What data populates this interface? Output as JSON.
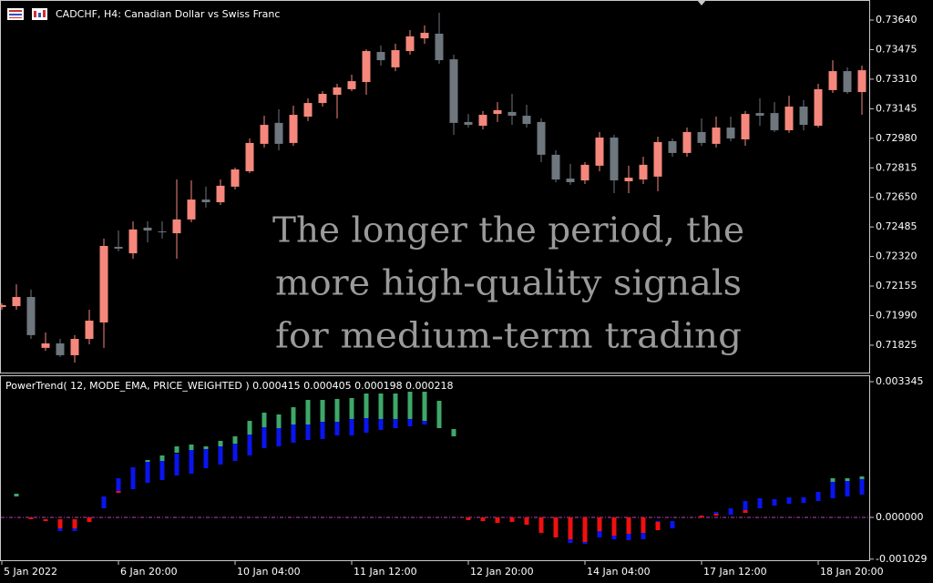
{
  "chart_data": [
    {
      "type": "candlestick",
      "title": "CADCHF, H4:  Canadian Dollar vs Swiss Franc",
      "annotations": [
        "The longer the period, the",
        "more high-quality signals",
        "for medium-term trading"
      ],
      "categories": [
        "5 Jan 2022",
        null,
        null,
        null,
        null,
        null,
        null,
        null,
        "6 Jan 20:00",
        null,
        null,
        null,
        null,
        null,
        null,
        null,
        "10 Jan 04:00",
        null,
        null,
        null,
        null,
        null,
        null,
        null,
        "11 Jan 12:00",
        null,
        null,
        null,
        null,
        null,
        null,
        null,
        "12 Jan 20:00",
        null,
        null,
        null,
        null,
        null,
        null,
        null,
        "14 Jan 04:00",
        null,
        null,
        null,
        null,
        null,
        null,
        null,
        "17 Jan 12:00",
        null,
        null,
        null,
        null,
        null,
        null,
        null,
        "18 Jan 20:00",
        null,
        null,
        null
      ],
      "open": [
        0.72038,
        0.72043,
        0.72094,
        0.7181,
        0.71835,
        0.71769,
        0.7186,
        0.71952,
        0.72374,
        0.72338,
        0.72481,
        0.7246,
        0.7245,
        0.72527,
        0.72638,
        0.72623,
        0.7271,
        0.72796,
        0.72949,
        0.73066,
        0.72954,
        0.73101,
        0.73177,
        0.73223,
        0.73254,
        0.73294,
        0.73462,
        0.73376,
        0.73467,
        0.73538,
        0.73564,
        0.73421,
        0.73071,
        0.7305,
        0.73116,
        0.73127,
        0.73106,
        0.73071,
        0.72888,
        0.72755,
        0.72745,
        0.72827,
        0.72984,
        0.7274,
        0.7275,
        0.72766,
        0.72964,
        0.72898,
        0.73015,
        0.72949,
        0.7304,
        0.72974,
        0.73121,
        0.73121,
        0.73025,
        0.73157,
        0.7305,
        0.73249,
        0.73355,
        0.73238
      ],
      "high": [
        0.72059,
        0.72165,
        0.72135,
        0.71896,
        0.7186,
        0.71881,
        0.72023,
        0.7242,
        0.72465,
        0.72516,
        0.72516,
        0.72516,
        0.7275,
        0.72745,
        0.7271,
        0.7275,
        0.72816,
        0.72979,
        0.73106,
        0.73142,
        0.73162,
        0.73203,
        0.73243,
        0.73284,
        0.73335,
        0.73477,
        0.73498,
        0.73508,
        0.73584,
        0.7361,
        0.73681,
        0.73447,
        0.73116,
        0.73132,
        0.73182,
        0.73228,
        0.73167,
        0.73091,
        0.72913,
        0.72837,
        0.72847,
        0.73015,
        0.72999,
        0.72827,
        0.72877,
        0.72989,
        0.72979,
        0.7304,
        0.73091,
        0.73101,
        0.73101,
        0.73132,
        0.73203,
        0.73182,
        0.73218,
        0.73193,
        0.73284,
        0.73416,
        0.73376,
        0.73386
      ],
      "low": [
        0.72023,
        0.72023,
        0.7186,
        0.71794,
        0.71759,
        0.71728,
        0.7183,
        0.7181,
        0.72349,
        0.72308,
        0.72399,
        0.7242,
        0.72308,
        0.72511,
        0.72593,
        0.72608,
        0.72694,
        0.72786,
        0.72928,
        0.72913,
        0.72938,
        0.73076,
        0.73157,
        0.73091,
        0.73243,
        0.73223,
        0.73386,
        0.73355,
        0.73447,
        0.73508,
        0.73396,
        0.72999,
        0.7304,
        0.7303,
        0.73071,
        0.73055,
        0.7304,
        0.72847,
        0.72735,
        0.7272,
        0.72725,
        0.72796,
        0.72674,
        0.72674,
        0.72725,
        0.72684,
        0.72877,
        0.72877,
        0.72938,
        0.72928,
        0.72964,
        0.72938,
        0.7305,
        0.73015,
        0.7301,
        0.73025,
        0.7304,
        0.73233,
        0.73228,
        0.73111
      ],
      "close": [
        0.72049,
        0.72094,
        0.71881,
        0.71835,
        0.71769,
        0.7186,
        0.71962,
        0.72379,
        0.72364,
        0.72471,
        0.72465,
        0.72455,
        0.72527,
        0.72638,
        0.72623,
        0.72715,
        0.72806,
        0.72954,
        0.73055,
        0.72949,
        0.73111,
        0.73177,
        0.73228,
        0.73264,
        0.73299,
        0.73467,
        0.73416,
        0.73472,
        0.73549,
        0.73569,
        0.73416,
        0.73066,
        0.73055,
        0.73111,
        0.73137,
        0.73106,
        0.7306,
        0.72888,
        0.7275,
        0.72735,
        0.72832,
        0.72984,
        0.72745,
        0.7276,
        0.72832,
        0.72959,
        0.72898,
        0.73015,
        0.72954,
        0.7304,
        0.72979,
        0.73116,
        0.73106,
        0.73025,
        0.73157,
        0.73055,
        0.73254,
        0.73355,
        0.73238,
        0.7336
      ],
      "up_color": "#f5877c",
      "down_color": "#6e767e",
      "ylim": [
        0.71667,
        0.73752
      ],
      "yticks": [
        {
          "value": 0.7364,
          "label": "0.73640"
        },
        {
          "value": 0.73475,
          "label": "0.73475"
        },
        {
          "value": 0.7331,
          "label": "0.73310"
        },
        {
          "value": 0.73145,
          "label": "0.73145"
        },
        {
          "value": 0.7298,
          "label": "0.72980"
        },
        {
          "value": 0.72815,
          "label": "0.72815"
        },
        {
          "value": 0.7265,
          "label": "0.72650"
        },
        {
          "value": 0.72485,
          "label": "0.72485"
        },
        {
          "value": 0.7232,
          "label": "0.72320"
        },
        {
          "value": 0.72155,
          "label": "0.72155"
        },
        {
          "value": 0.7199,
          "label": "0.71990"
        },
        {
          "value": 0.71825,
          "label": "0.71825"
        }
      ]
    },
    {
      "type": "floating_bar",
      "title": "PowerTrend( 12, MODE_EMA, PRICE_WEIGHTED ) 0.000415 0.000405 0.000198 0.000218",
      "zero_line_color": "#c040c0",
      "series": [
        {
          "color": "#0a14f0",
          "values": [
            null,
            null,
            null,
            null,
            [
              -0.000337,
              -0.000225
            ],
            [
              -0.000337,
              -0.000225
            ],
            null,
            [
              0.000225,
              0.000516
            ],
            [
              0.000629,
              0.000965
            ],
            [
              0.000696,
              0.001235
            ],
            [
              0.000853,
              0.001369
            ],
            [
              0.00092,
              0.001482
            ],
            [
              0.001033,
              0.001572
            ],
            [
              0.001078,
              0.001661
            ],
            [
              0.001212,
              0.001706
            ],
            [
              0.001302,
              0.001751
            ],
            [
              0.001392,
              0.001818
            ],
            [
              0.001527,
              0.002043
            ],
            [
              0.001706,
              0.002223
            ],
            [
              0.001751,
              0.0022
            ],
            [
              0.001841,
              0.00229
            ],
            [
              0.001908,
              0.00229
            ],
            [
              0.001931,
              0.002357
            ],
            [
              0.002021,
              0.002357
            ],
            [
              0.002021,
              0.002425
            ],
            [
              0.002088,
              0.002447
            ],
            [
              0.002155,
              0.002425
            ],
            [
              0.0022,
              0.002425
            ],
            [
              0.002245,
              0.002425
            ],
            [
              0.00229,
              0.00238
            ],
            null,
            null,
            null,
            null,
            null,
            null,
            null,
            null,
            null,
            [
              -0.000629,
              -0.000494
            ],
            [
              -0.000651,
              -0.000539
            ],
            [
              -0.000494,
              -0.000337
            ],
            [
              -0.000539,
              -0.000382
            ],
            [
              -0.000561,
              -0.000404
            ],
            [
              -0.000539,
              -0.000314
            ],
            [
              -0.000314,
              -9e-05
            ],
            [
              -0.000269,
              -9e-05
            ],
            null,
            null,
            [
              4.5e-05,
              0.000135
            ],
            [
              6.7e-05,
              0.000225
            ],
            [
              0.000135,
              0.000404
            ],
            [
              0.000225,
              0.000471
            ],
            [
              0.000292,
              0.000449
            ],
            [
              0.000337,
              0.000494
            ],
            [
              0.000359,
              0.000494
            ],
            [
              0.000404,
              0.000629
            ],
            [
              0.000471,
              0.000876
            ],
            [
              0.000516,
              0.000898
            ],
            [
              0.000561,
              0.000943
            ]
          ]
        },
        {
          "color": "#3ea86a",
          "values": [
            null,
            [
              0.000516,
              0.000584
            ],
            null,
            null,
            null,
            null,
            null,
            null,
            null,
            null,
            [
              0.001369,
              0.001414
            ],
            [
              0.001392,
              0.001527
            ],
            [
              0.001594,
              0.001751
            ],
            [
              0.001661,
              0.001796
            ],
            [
              0.001684,
              0.001751
            ],
            [
              0.001751,
              0.001886
            ],
            [
              0.001818,
              0.001998
            ],
            [
              0.002043,
              0.00238
            ],
            [
              0.002223,
              0.002582
            ],
            [
              0.0022,
              0.002537
            ],
            [
              0.00229,
              0.002716
            ],
            [
              0.00229,
              0.002896
            ],
            [
              0.002357,
              0.002896
            ],
            [
              0.002357,
              0.002919
            ],
            [
              0.002425,
              0.002941
            ],
            [
              0.002447,
              0.003053
            ],
            [
              0.002425,
              0.003053
            ],
            [
              0.002425,
              0.003053
            ],
            [
              0.002425,
              0.003098
            ],
            [
              0.00238,
              0.003098
            ],
            [
              0.0022,
              0.002874
            ],
            [
              0.001998,
              0.002178
            ],
            null,
            null,
            null,
            null,
            null,
            null,
            null,
            null,
            null,
            null,
            null,
            null,
            null,
            null,
            null,
            null,
            null,
            null,
            null,
            null,
            null,
            null,
            null,
            null,
            null,
            [
              0.000876,
              0.000965
            ],
            [
              0.000898,
              0.000965
            ],
            [
              0.000943,
              0.00101
            ]
          ]
        },
        {
          "color": "#f01010",
          "values": [
            null,
            null,
            [
              -4.5e-05,
              0
            ],
            [
              -9e-05,
              -4.5e-05
            ],
            [
              -0.000269,
              -4.5e-05
            ],
            [
              -0.000269,
              -4.5e-05
            ],
            [
              -0.000112,
              0
            ],
            null,
            [
              0.000606,
              0.000651
            ],
            null,
            null,
            null,
            null,
            null,
            null,
            null,
            null,
            null,
            null,
            null,
            null,
            null,
            null,
            null,
            null,
            null,
            null,
            null,
            null,
            null,
            null,
            null,
            [
              -6.7e-05,
              0
            ],
            [
              -9e-05,
              0
            ],
            [
              -0.000135,
              0
            ],
            [
              -0.000112,
              0
            ],
            [
              -0.00018,
              0
            ],
            [
              -0.000382,
              0
            ],
            [
              -0.000494,
              0
            ],
            [
              -0.000539,
              0
            ],
            [
              -0.000606,
              0
            ],
            [
              -0.000337,
              0
            ],
            [
              -0.000449,
              0
            ],
            [
              -0.000404,
              0
            ],
            [
              -0.000382,
              0
            ],
            [
              -0.000314,
              -0.000112
            ],
            null,
            null,
            [
              0,
              4.5e-05
            ],
            [
              4.5e-05,
              9e-05
            ],
            null,
            [
              0.000112,
              0.00018
            ],
            null,
            null,
            null,
            null,
            null,
            null,
            null,
            null
          ]
        }
      ],
      "ylim": [
        -0.001078,
        0.003502
      ],
      "yticks": [
        0.003345,
        {
          "value": 0,
          "label": "0.000000"
        },
        -0.001029
      ]
    }
  ]
}
